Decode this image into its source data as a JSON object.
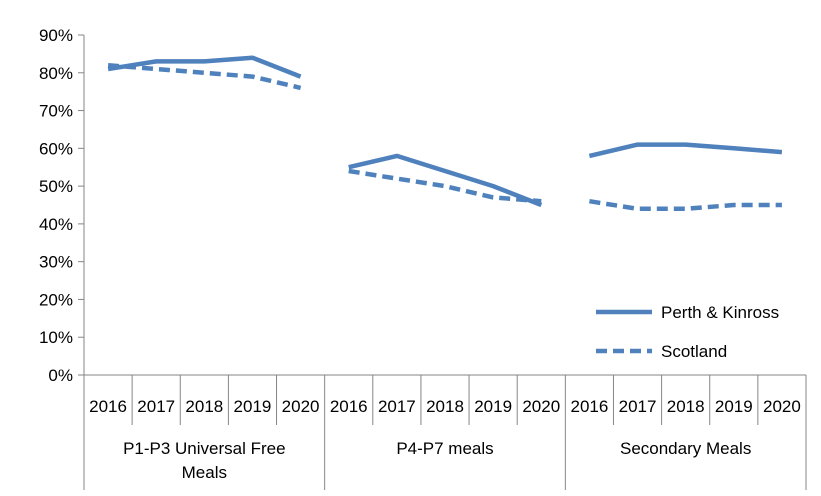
{
  "chart_data": {
    "type": "line",
    "title": "",
    "xlabel": "",
    "ylabel": "",
    "ylim": [
      0,
      90
    ],
    "yticks": [
      "0%",
      "10%",
      "20%",
      "30%",
      "40%",
      "50%",
      "60%",
      "70%",
      "80%",
      "90%"
    ],
    "grid": false,
    "legend_position": "bottom-right",
    "years": [
      "2016",
      "2017",
      "2018",
      "2019",
      "2020"
    ],
    "groups": [
      {
        "label": "P1-P3 Universal Free Meals"
      },
      {
        "label": "P4-P7 meals"
      },
      {
        "label": "Secondary Meals"
      }
    ],
    "series": [
      {
        "name": "Perth & Kinross",
        "style": "solid",
        "color": "#4F81BD",
        "values": [
          [
            81,
            83,
            83,
            84,
            79
          ],
          [
            55,
            58,
            54,
            50,
            45
          ],
          [
            58,
            61,
            61,
            60,
            59
          ]
        ]
      },
      {
        "name": "Scotland",
        "style": "dashed",
        "color": "#4F81BD",
        "values": [
          [
            82,
            81,
            80,
            79,
            76
          ],
          [
            54,
            52,
            50,
            47,
            46
          ],
          [
            46,
            44,
            44,
            45,
            45
          ]
        ]
      }
    ]
  }
}
